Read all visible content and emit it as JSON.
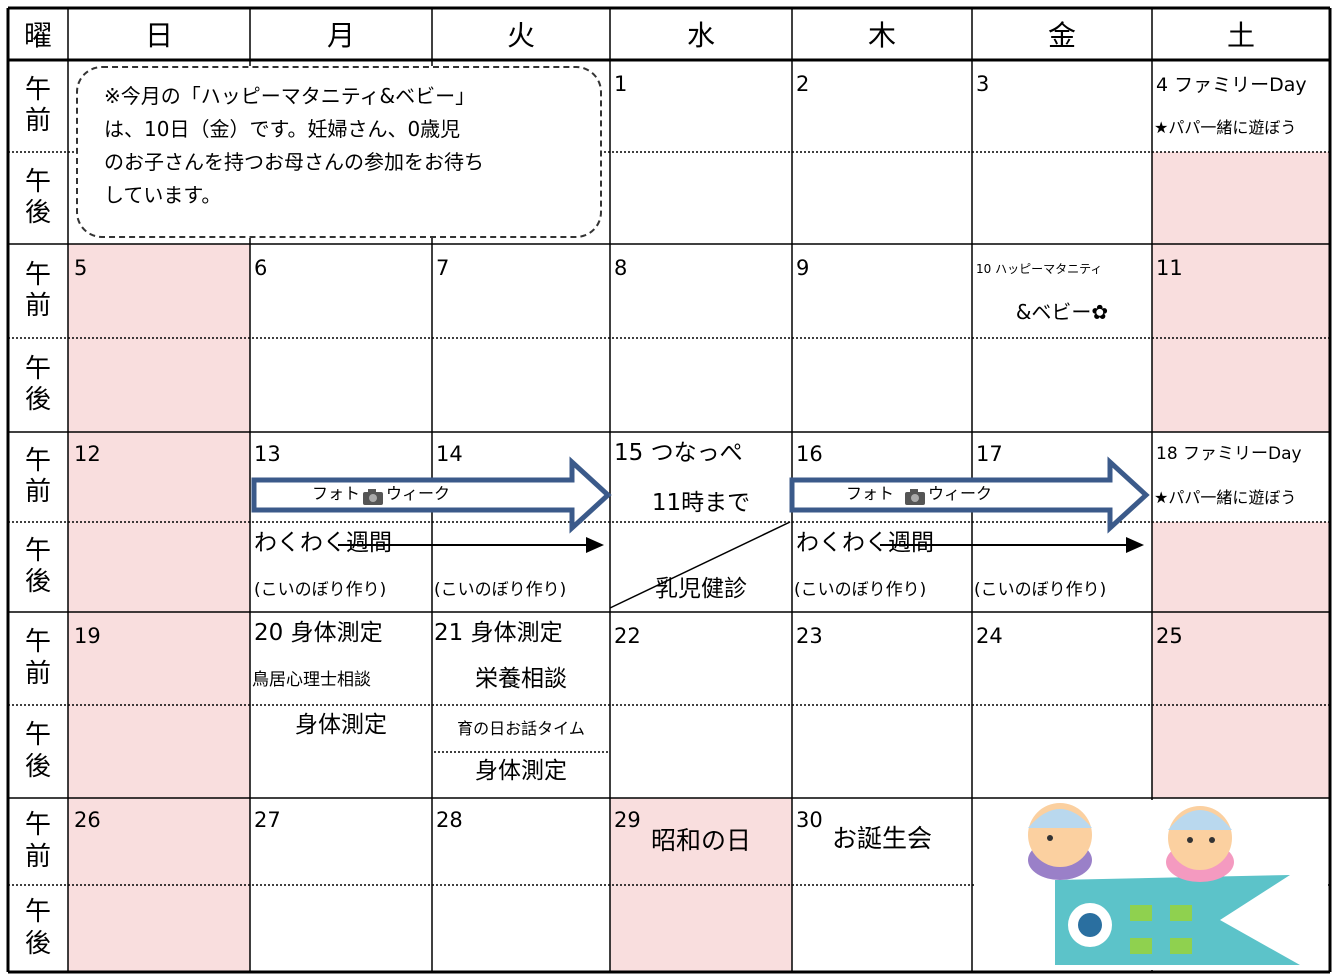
{
  "header": {
    "days": [
      "曜",
      "日",
      "月",
      "火",
      "水",
      "木",
      "金",
      "土"
    ]
  },
  "row_labels": {
    "am": "午前",
    "pm": "午後"
  },
  "note": {
    "lines": [
      "※今月の「ハッピーマタニティ&ベビー」",
      "は、10日（金）です。妊婦さん、0歳児",
      "のお子さんを持つお母さんの参加をお待ち",
      "しています。"
    ]
  },
  "weeks": [
    [
      [],
      [],
      [],
      [
        "1"
      ],
      [
        "2"
      ],
      [
        "3"
      ],
      [
        "4 ファミリーDay",
        "★パパ一緒に遊ぼう"
      ]
    ],
    [
      [
        "5"
      ],
      [
        "6"
      ],
      [
        "7"
      ],
      [
        "8"
      ],
      [
        "9"
      ],
      [
        "10 ハッピーマタニティ",
        "&ベビー✿"
      ],
      [
        "11"
      ]
    ],
    [
      [
        "12"
      ],
      [
        "13",
        "フォト",
        "ウィーク",
        "わくわく週間",
        "(こいのぼり作り)"
      ],
      [
        "14",
        "(こいのぼり作り)"
      ],
      [
        "15 つなっぺ",
        "11時まで",
        "乳児健診"
      ],
      [
        "16",
        "フォト",
        "ウィーク",
        "わくわく週間",
        "(こいのぼり作り)"
      ],
      [
        "17",
        "(こいのぼり作り)"
      ],
      [
        "18 ファミリーDay",
        "★パパ一緒に遊ぼう"
      ]
    ],
    [
      [
        "19"
      ],
      [
        "20 身体測定",
        "鳥居心理士相談",
        "身体測定"
      ],
      [
        "21 身体測定",
        "栄養相談",
        "育の日お話タイム",
        "身体測定"
      ],
      [
        "22"
      ],
      [
        "23"
      ],
      [
        "24"
      ],
      [
        "25"
      ]
    ],
    [
      [
        "26"
      ],
      [
        "27"
      ],
      [
        "28"
      ],
      [
        "29",
        "昭和の日"
      ],
      [
        "30",
        "お誕生会"
      ]
    ]
  ]
}
